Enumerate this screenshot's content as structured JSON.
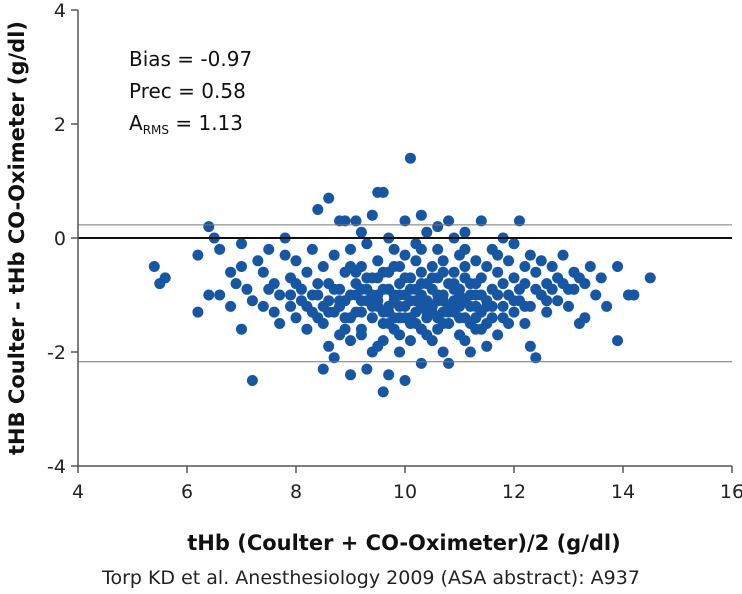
{
  "chart_data": {
    "type": "scatter",
    "title": "",
    "xlabel": "tHb (Coulter + CO-Oximeter)/2 (g/dl)",
    "ylabel": "tHB Coulter - tHb CO-Oximeter (g/dl)",
    "xlim": [
      4,
      16
    ],
    "ylim": [
      -4,
      4
    ],
    "x_ticks": [
      4,
      6,
      8,
      10,
      12,
      14,
      16
    ],
    "y_ticks": [
      -4,
      -2,
      0,
      2,
      4
    ],
    "x_tick_labels": [
      "4",
      "6",
      "8",
      "10",
      "12",
      "14",
      "16"
    ],
    "y_tick_labels": [
      "-4",
      "-2",
      "0",
      "2",
      "4"
    ],
    "grid": false,
    "point_color": "#1656a3",
    "zero_line": 0,
    "limits_of_agreement": [
      0.23,
      -2.17
    ],
    "annotations": {
      "bias": "Bias = -0.97",
      "prec": "Prec = 0.58",
      "arms_main": "A",
      "arms_sub": "RMS",
      "arms_value": " = 1.13"
    },
    "source": "Torp KD et al. Anesthesiology 2009 (ASA abstract): A937",
    "points": [
      [
        5.4,
        -0.5
      ],
      [
        5.6,
        -0.7
      ],
      [
        5.5,
        -0.8
      ],
      [
        6.2,
        -1.3
      ],
      [
        6.2,
        -0.3
      ],
      [
        6.4,
        -1.0
      ],
      [
        6.4,
        0.2
      ],
      [
        6.5,
        0.0
      ],
      [
        6.6,
        -0.2
      ],
      [
        6.6,
        -1.0
      ],
      [
        6.8,
        -0.6
      ],
      [
        6.9,
        -0.8
      ],
      [
        6.8,
        -1.2
      ],
      [
        7.0,
        -0.1
      ],
      [
        7.0,
        -0.5
      ],
      [
        7.0,
        -1.6
      ],
      [
        7.2,
        -1.1
      ],
      [
        7.2,
        -2.5
      ],
      [
        7.1,
        -0.9
      ],
      [
        7.3,
        -0.4
      ],
      [
        7.4,
        -0.6
      ],
      [
        7.4,
        -1.2
      ],
      [
        7.5,
        -0.2
      ],
      [
        7.6,
        -0.8
      ],
      [
        7.7,
        -1.0
      ],
      [
        7.7,
        -1.5
      ],
      [
        7.8,
        0.0
      ],
      [
        7.8,
        -0.3
      ],
      [
        7.9,
        -0.7
      ],
      [
        7.9,
        -1.2
      ],
      [
        8.0,
        -1.4
      ],
      [
        8.0,
        -0.4
      ],
      [
        8.1,
        -0.9
      ],
      [
        8.1,
        -1.1
      ],
      [
        8.2,
        -0.6
      ],
      [
        8.2,
        -1.6
      ],
      [
        8.3,
        -0.2
      ],
      [
        8.3,
        -1.3
      ],
      [
        8.4,
        0.5
      ],
      [
        8.4,
        -0.8
      ],
      [
        8.4,
        -1.0
      ],
      [
        8.5,
        -2.3
      ],
      [
        8.5,
        -1.5
      ],
      [
        8.5,
        -0.5
      ],
      [
        8.6,
        0.7
      ],
      [
        8.6,
        -1.1
      ],
      [
        8.6,
        -1.9
      ],
      [
        8.7,
        -2.1
      ],
      [
        8.7,
        -0.3
      ],
      [
        8.7,
        -0.9
      ],
      [
        8.8,
        -1.7
      ],
      [
        8.8,
        0.3
      ],
      [
        8.8,
        -1.2
      ],
      [
        8.9,
        -0.6
      ],
      [
        8.9,
        -1.4
      ],
      [
        9.0,
        -2.4
      ],
      [
        9.0,
        -1.0
      ],
      [
        9.0,
        -0.2
      ],
      [
        9.0,
        -1.8
      ],
      [
        9.1,
        -0.8
      ],
      [
        9.1,
        -1.3
      ],
      [
        9.1,
        0.3
      ],
      [
        9.2,
        -0.5
      ],
      [
        9.2,
        -1.1
      ],
      [
        9.2,
        -1.6
      ],
      [
        9.3,
        -2.3
      ],
      [
        9.3,
        -0.9
      ],
      [
        9.3,
        -0.1
      ],
      [
        9.4,
        -1.4
      ],
      [
        9.4,
        -0.7
      ],
      [
        9.4,
        -2.0
      ],
      [
        9.4,
        0.4
      ],
      [
        9.5,
        -1.2
      ],
      [
        9.5,
        -0.4
      ],
      [
        9.5,
        -1.0
      ],
      [
        9.5,
        0.8
      ],
      [
        9.6,
        -1.5
      ],
      [
        9.6,
        -0.6
      ],
      [
        9.6,
        -2.7
      ],
      [
        9.6,
        -1.8
      ],
      [
        9.7,
        -0.9
      ],
      [
        9.7,
        -1.3
      ],
      [
        9.7,
        0.0
      ],
      [
        9.7,
        -2.4
      ],
      [
        9.8,
        -1.1
      ],
      [
        9.8,
        -0.5
      ],
      [
        9.8,
        -1.6
      ],
      [
        9.8,
        -0.2
      ],
      [
        9.9,
        -1.0
      ],
      [
        9.9,
        -2.0
      ],
      [
        9.9,
        -0.8
      ],
      [
        9.9,
        -1.4
      ],
      [
        10.0,
        -0.3
      ],
      [
        10.0,
        -1.2
      ],
      [
        10.0,
        0.3
      ],
      [
        10.0,
        -2.5
      ],
      [
        10.0,
        -0.7
      ],
      [
        10.1,
        -1.5
      ],
      [
        10.1,
        -0.9
      ],
      [
        10.1,
        1.4
      ],
      [
        10.1,
        -1.8
      ],
      [
        10.2,
        -0.4
      ],
      [
        10.2,
        -1.1
      ],
      [
        10.2,
        -0.1
      ],
      [
        10.2,
        -1.3
      ],
      [
        10.3,
        -2.2
      ],
      [
        10.3,
        -0.6
      ],
      [
        10.3,
        -1.0
      ],
      [
        10.3,
        0.4
      ],
      [
        10.4,
        -1.4
      ],
      [
        10.4,
        -0.8
      ],
      [
        10.4,
        -1.7
      ],
      [
        10.4,
        0.1
      ],
      [
        10.5,
        -1.2
      ],
      [
        10.5,
        -0.5
      ],
      [
        10.5,
        -0.9
      ],
      [
        10.6,
        -1.6
      ],
      [
        10.6,
        -0.2
      ],
      [
        10.6,
        -1.1
      ],
      [
        10.6,
        -0.7
      ],
      [
        10.7,
        -1.3
      ],
      [
        10.7,
        -2.0
      ],
      [
        10.7,
        -0.4
      ],
      [
        10.7,
        -1.0
      ],
      [
        10.8,
        0.3
      ],
      [
        10.8,
        -0.8
      ],
      [
        10.8,
        -1.5
      ],
      [
        10.8,
        -2.2
      ],
      [
        10.9,
        -1.1
      ],
      [
        10.9,
        -0.6
      ],
      [
        10.9,
        -1.3
      ],
      [
        11.0,
        -0.9
      ],
      [
        11.0,
        -1.7
      ],
      [
        11.0,
        -0.3
      ],
      [
        11.0,
        -1.0
      ],
      [
        11.1,
        -1.4
      ],
      [
        11.1,
        -0.5
      ],
      [
        11.1,
        0.1
      ],
      [
        11.2,
        -1.2
      ],
      [
        11.2,
        -0.8
      ],
      [
        11.2,
        -2.0
      ],
      [
        11.3,
        -1.0
      ],
      [
        11.3,
        -0.4
      ],
      [
        11.3,
        -1.6
      ],
      [
        11.4,
        -0.7
      ],
      [
        11.4,
        -1.3
      ],
      [
        11.4,
        0.3
      ],
      [
        11.5,
        -1.1
      ],
      [
        11.5,
        -0.5
      ],
      [
        11.5,
        -1.9
      ],
      [
        11.6,
        -0.9
      ],
      [
        11.6,
        -1.4
      ],
      [
        11.6,
        -0.2
      ],
      [
        11.7,
        -1.0
      ],
      [
        11.7,
        -0.6
      ],
      [
        11.7,
        -1.7
      ],
      [
        11.8,
        0.0
      ],
      [
        11.8,
        -1.2
      ],
      [
        11.8,
        -0.8
      ],
      [
        11.9,
        -1.5
      ],
      [
        11.9,
        -0.4
      ],
      [
        11.9,
        -1.0
      ],
      [
        12.0,
        -0.7
      ],
      [
        12.0,
        -1.3
      ],
      [
        12.0,
        -0.1
      ],
      [
        12.1,
        0.3
      ],
      [
        12.1,
        -0.9
      ],
      [
        12.1,
        -1.1
      ],
      [
        12.2,
        -0.5
      ],
      [
        12.2,
        -1.5
      ],
      [
        12.2,
        -0.8
      ],
      [
        12.3,
        -1.2
      ],
      [
        12.3,
        -0.3
      ],
      [
        12.3,
        -1.9
      ],
      [
        12.4,
        -0.6
      ],
      [
        12.4,
        -2.1
      ],
      [
        12.5,
        -1.0
      ],
      [
        12.5,
        -0.4
      ],
      [
        12.6,
        -0.8
      ],
      [
        12.6,
        -1.3
      ],
      [
        12.7,
        -0.5
      ],
      [
        12.8,
        -1.1
      ],
      [
        12.8,
        -0.7
      ],
      [
        12.9,
        -0.3
      ],
      [
        13.0,
        -0.9
      ],
      [
        13.0,
        -1.2
      ],
      [
        13.1,
        -0.6
      ],
      [
        13.2,
        -1.5
      ],
      [
        13.3,
        -0.8
      ],
      [
        13.3,
        -1.4
      ],
      [
        13.4,
        -0.5
      ],
      [
        13.5,
        -1.0
      ],
      [
        13.6,
        -0.7
      ],
      [
        13.7,
        -1.2
      ],
      [
        13.9,
        -0.5
      ],
      [
        14.1,
        -1.0
      ],
      [
        14.2,
        -1.0
      ],
      [
        13.9,
        -1.8
      ],
      [
        14.5,
        -0.7
      ],
      [
        9.1,
        -1.0
      ],
      [
        9.2,
        -0.9
      ],
      [
        9.3,
        -1.1
      ],
      [
        9.4,
        -1.0
      ],
      [
        9.5,
        -1.1
      ],
      [
        9.6,
        -0.9
      ],
      [
        9.7,
        -1.2
      ],
      [
        9.8,
        -1.0
      ],
      [
        9.9,
        -1.2
      ],
      [
        10.0,
        -1.0
      ],
      [
        10.1,
        -1.1
      ],
      [
        10.2,
        -0.9
      ],
      [
        10.3,
        -1.2
      ],
      [
        10.4,
        -1.1
      ],
      [
        10.5,
        -1.3
      ],
      [
        10.6,
        -1.0
      ],
      [
        10.7,
        -1.1
      ],
      [
        10.8,
        -1.2
      ],
      [
        10.9,
        -0.9
      ],
      [
        11.0,
        -1.2
      ],
      [
        11.1,
        -1.1
      ],
      [
        11.2,
        -1.0
      ],
      [
        11.3,
        -1.2
      ],
      [
        11.4,
        -1.0
      ],
      [
        11.5,
        -1.2
      ],
      [
        8.9,
        -1.1
      ],
      [
        8.8,
        -0.9
      ],
      [
        8.7,
        -1.3
      ],
      [
        9.0,
        -1.4
      ],
      [
        9.2,
        -1.3
      ],
      [
        9.4,
        -1.2
      ],
      [
        9.6,
        -1.3
      ],
      [
        9.8,
        -1.4
      ],
      [
        10.0,
        -1.4
      ],
      [
        10.2,
        -1.5
      ],
      [
        10.4,
        -1.3
      ],
      [
        10.6,
        -1.4
      ],
      [
        10.8,
        -1.3
      ],
      [
        11.0,
        -1.4
      ],
      [
        11.2,
        -1.5
      ],
      [
        11.4,
        -1.6
      ],
      [
        9.1,
        -0.6
      ],
      [
        9.3,
        -0.7
      ],
      [
        9.5,
        -0.7
      ],
      [
        9.7,
        -0.6
      ],
      [
        9.9,
        -0.5
      ],
      [
        10.1,
        -0.7
      ],
      [
        10.3,
        -0.8
      ],
      [
        10.5,
        -0.7
      ],
      [
        10.7,
        -0.6
      ],
      [
        10.9,
        -0.8
      ],
      [
        11.1,
        -0.7
      ],
      [
        11.3,
        -0.8
      ],
      [
        8.3,
        -1.0
      ],
      [
        8.5,
        -1.2
      ],
      [
        8.6,
        -0.8
      ],
      [
        8.9,
        -1.6
      ],
      [
        9.0,
        -0.5
      ],
      [
        9.2,
        -1.7
      ],
      [
        9.5,
        -1.9
      ],
      [
        9.7,
        -1.5
      ],
      [
        9.9,
        -1.7
      ],
      [
        10.1,
        -1.4
      ],
      [
        10.3,
        -1.6
      ],
      [
        10.5,
        -1.8
      ],
      [
        10.7,
        -1.5
      ],
      [
        11.1,
        -1.8
      ],
      [
        11.3,
        -1.4
      ],
      [
        11.5,
        -1.5
      ],
      [
        11.6,
        -1.2
      ],
      [
        11.8,
        -1.4
      ],
      [
        12.0,
        -1.1
      ],
      [
        12.2,
        -1.2
      ],
      [
        7.6,
        -1.3
      ],
      [
        7.5,
        -0.9
      ],
      [
        7.9,
        -1.0
      ],
      [
        8.0,
        -0.8
      ],
      [
        8.2,
        -1.2
      ],
      [
        8.4,
        -1.4
      ],
      [
        8.6,
        -1.3
      ],
      [
        8.8,
        -1.1
      ],
      [
        12.4,
        -0.9
      ],
      [
        12.6,
        -1.1
      ],
      [
        12.7,
        -0.9
      ],
      [
        12.9,
        -0.8
      ],
      [
        13.1,
        -0.9
      ],
      [
        13.2,
        -0.7
      ],
      [
        9.6,
        0.8
      ],
      [
        10.3,
        -0.2
      ],
      [
        10.6,
        0.2
      ],
      [
        11.1,
        -0.2
      ],
      [
        11.7,
        -0.3
      ],
      [
        8.9,
        0.3
      ],
      [
        9.2,
        0.1
      ],
      [
        10.9,
        0.0
      ]
    ]
  }
}
